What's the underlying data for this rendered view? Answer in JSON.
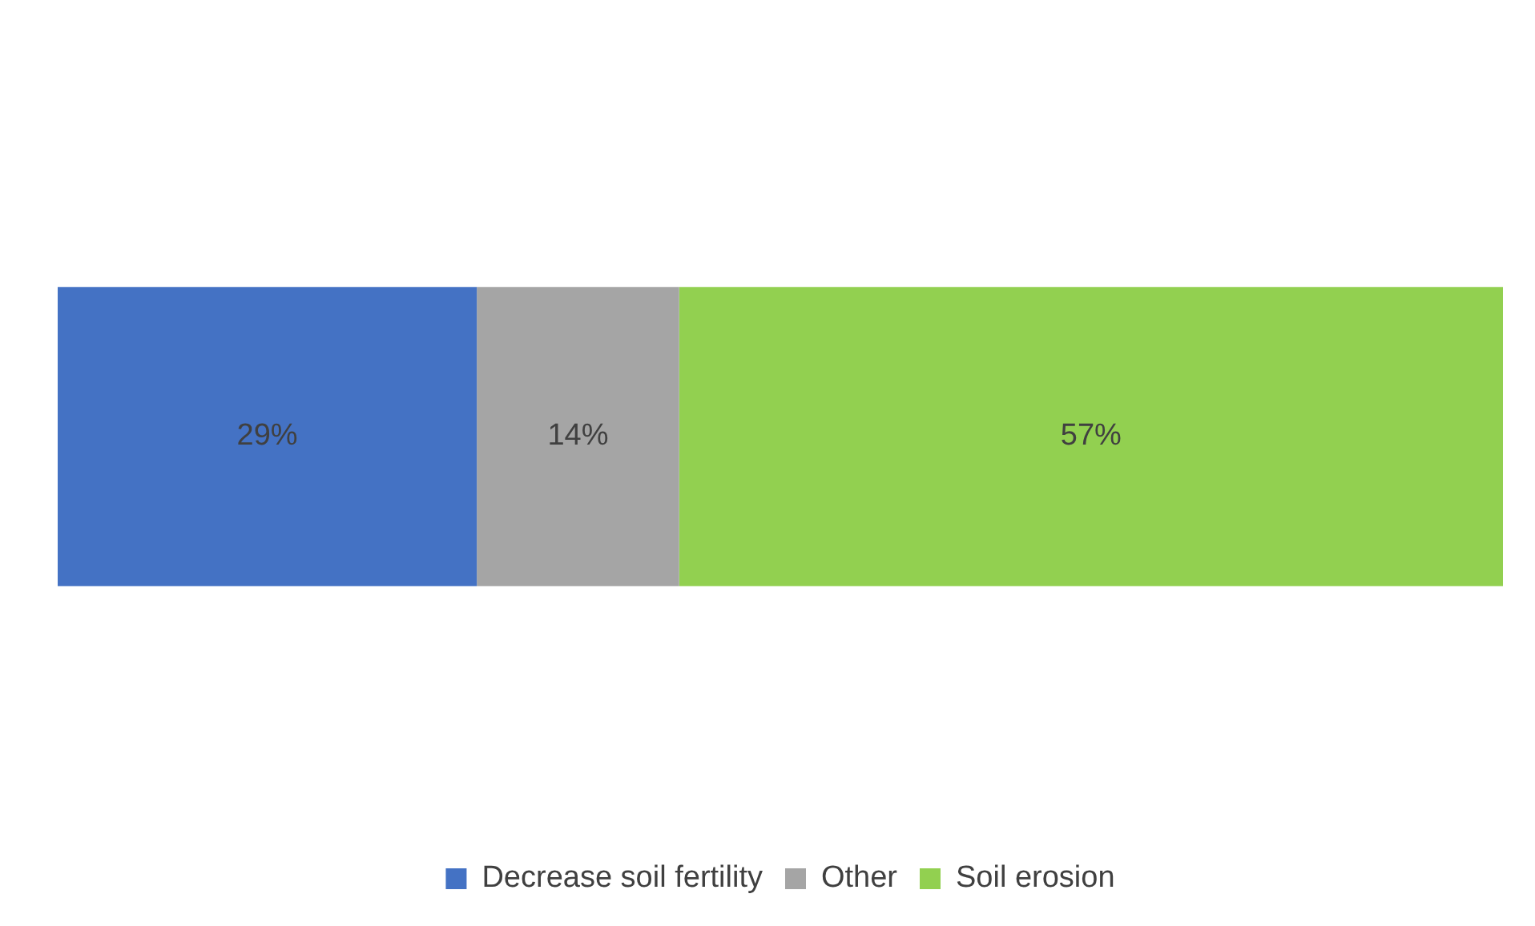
{
  "chart_data": {
    "type": "bar",
    "orientation": "horizontal",
    "stacked": true,
    "categories": [
      null
    ],
    "series": [
      {
        "name": "Decrease soil fertility",
        "color": "#4472c4",
        "values": [
          29
        ],
        "value_labels": [
          "29%"
        ]
      },
      {
        "name": "Other",
        "color": "#a5a5a5",
        "values": [
          14
        ],
        "value_labels": [
          "14%"
        ]
      },
      {
        "name": "Soil erosion",
        "color": "#92d050",
        "values": [
          57
        ],
        "value_labels": [
          "57%"
        ]
      }
    ],
    "legend": "bottom"
  }
}
